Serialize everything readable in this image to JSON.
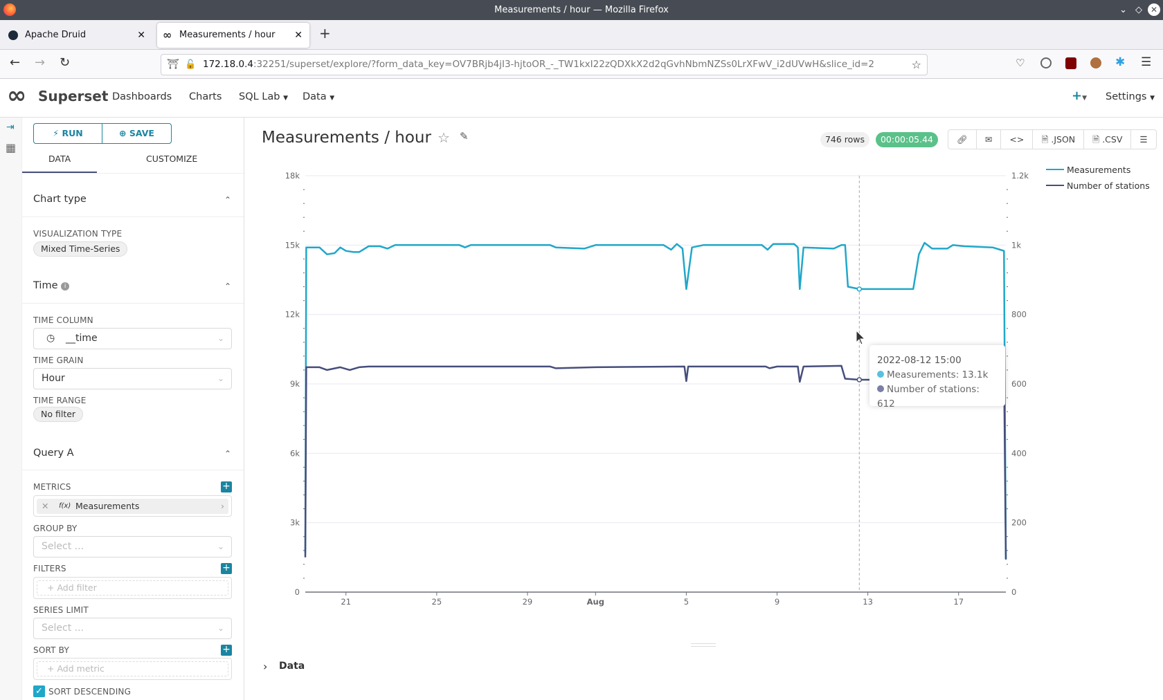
{
  "window": {
    "title": "Measurements / hour — Mozilla Firefox"
  },
  "tabs": [
    {
      "label": "Apache Druid"
    },
    {
      "label": "Measurements / hour",
      "active": true
    }
  ],
  "urlbar": {
    "host": "172.18.0.4",
    "rest": ":32251/superset/explore/?form_data_key=OV7BRjb4jI3-hjtoOR_-_TW1kxI22zQDXkX2d2qGvhNbmNZSs0LrXFwV_i2dUVwH&slice_id=2"
  },
  "app": {
    "brand": "Superset",
    "nav": [
      "Dashboards",
      "Charts",
      "SQL Lab",
      "Data"
    ],
    "settings": "Settings"
  },
  "panel": {
    "run": "RUN",
    "save": "SAVE",
    "tabs": [
      "DATA",
      "CUSTOMIZE"
    ],
    "chart_type": "Chart type",
    "viz_type_label": "VISUALIZATION TYPE",
    "viz_type": "Mixed Time-Series",
    "time": "Time",
    "time_column_label": "TIME COLUMN",
    "time_column": "__time",
    "time_grain_label": "TIME GRAIN",
    "time_grain": "Hour",
    "time_range_label": "TIME RANGE",
    "time_range": "No filter",
    "query": "Query A",
    "metrics_label": "METRICS",
    "metric": "Measurements",
    "metric_fx": "f(x)",
    "group_by_label": "GROUP BY",
    "select_ph": "Select ...",
    "filters_label": "FILTERS",
    "add_filter": "Add filter",
    "series_limit_label": "SERIES LIMIT",
    "sort_by_label": "SORT BY",
    "add_metric": "Add metric",
    "sort_desc": "SORT DESCENDING",
    "sort_desc_checked": true
  },
  "chart_header": {
    "title": "Measurements / hour",
    "rows": "746 rows",
    "timer": "00:00:05.44",
    "json": ".JSON",
    "csv": ".CSV"
  },
  "tooltip": {
    "time": "2022-08-12 15:00",
    "m": "Measurements: 13.1k",
    "s": "Number of stations: 612"
  },
  "data_section": "Data",
  "chart_data": {
    "type": "line",
    "xlim": [
      "2022-07-19 05:00",
      "2022-08-19 02:00"
    ],
    "x_ticks": [
      "21",
      "25",
      "29",
      "Aug",
      "5",
      "9",
      "13",
      "17"
    ],
    "x_tick_dates": [
      "2022-07-21",
      "2022-07-25",
      "2022-07-29",
      "2022-08-01",
      "2022-08-05",
      "2022-08-09",
      "2022-08-13",
      "2022-08-17"
    ],
    "y_left": {
      "lim": [
        0,
        18000
      ],
      "ticks": [
        "0",
        "3k",
        "6k",
        "9k",
        "12k",
        "15k",
        "18k"
      ]
    },
    "y_right": {
      "lim": [
        0,
        1200
      ],
      "ticks": [
        "0",
        "200",
        "400",
        "600",
        "800",
        "1k",
        "1.2k"
      ]
    },
    "grid": true,
    "legend": "top-right",
    "hover": "2022-08-12 15:00",
    "series": [
      {
        "name": "Measurements",
        "axis": "left",
        "color": "#20a7c9",
        "points": [
          [
            "2022-07-19 05:00",
            1700
          ],
          [
            "2022-07-19 06:00",
            14900
          ],
          [
            "2022-07-19 20:00",
            14900
          ],
          [
            "2022-07-20 04:00",
            14600
          ],
          [
            "2022-07-20 12:00",
            14650
          ],
          [
            "2022-07-20 18:00",
            14900
          ],
          [
            "2022-07-21 00:00",
            14750
          ],
          [
            "2022-07-21 08:00",
            14700
          ],
          [
            "2022-07-21 14:00",
            14700
          ],
          [
            "2022-07-22 00:00",
            14950
          ],
          [
            "2022-07-22 12:00",
            14950
          ],
          [
            "2022-07-22 20:00",
            14850
          ],
          [
            "2022-07-23 04:00",
            15000
          ],
          [
            "2022-07-26 00:00",
            15000
          ],
          [
            "2022-07-26 06:00",
            14900
          ],
          [
            "2022-07-26 12:00",
            15000
          ],
          [
            "2022-07-30 00:00",
            15000
          ],
          [
            "2022-07-30 06:00",
            14900
          ],
          [
            "2022-07-31 12:00",
            14850
          ],
          [
            "2022-08-01 00:00",
            15000
          ],
          [
            "2022-08-04 00:00",
            15000
          ],
          [
            "2022-08-04 08:00",
            14800
          ],
          [
            "2022-08-04 14:00",
            15050
          ],
          [
            "2022-08-04 20:00",
            14850
          ],
          [
            "2022-08-05 00:00",
            13100
          ],
          [
            "2022-08-05 06:00",
            14900
          ],
          [
            "2022-08-05 18:00",
            15000
          ],
          [
            "2022-08-08 08:00",
            15000
          ],
          [
            "2022-08-08 14:00",
            14800
          ],
          [
            "2022-08-08 20:00",
            15050
          ],
          [
            "2022-08-09 18:00",
            15050
          ],
          [
            "2022-08-09 22:00",
            14900
          ],
          [
            "2022-08-10 00:00",
            13100
          ],
          [
            "2022-08-10 04:00",
            14900
          ],
          [
            "2022-08-11 12:00",
            14850
          ],
          [
            "2022-08-11 20:00",
            15000
          ],
          [
            "2022-08-12 00:00",
            15000
          ],
          [
            "2022-08-12 03:00",
            13200
          ],
          [
            "2022-08-12 15:00",
            13100
          ],
          [
            "2022-08-15 00:00",
            13100
          ],
          [
            "2022-08-15 06:00",
            14600
          ],
          [
            "2022-08-15 12:00",
            15100
          ],
          [
            "2022-08-15 20:00",
            14850
          ],
          [
            "2022-08-16 12:00",
            14850
          ],
          [
            "2022-08-16 18:00",
            15000
          ],
          [
            "2022-08-17 06:00",
            14950
          ],
          [
            "2022-08-18 12:00",
            14900
          ],
          [
            "2022-08-18 20:00",
            14800
          ],
          [
            "2022-08-19 00:00",
            14750
          ],
          [
            "2022-08-19 02:00",
            1400
          ]
        ]
      },
      {
        "name": "Number of stations",
        "axis": "right",
        "color": "#454e7c",
        "points": [
          [
            "2022-07-19 05:00",
            100
          ],
          [
            "2022-07-19 06:00",
            648
          ],
          [
            "2022-07-19 20:00",
            648
          ],
          [
            "2022-07-20 04:00",
            640
          ],
          [
            "2022-07-20 18:00",
            648
          ],
          [
            "2022-07-21 04:00",
            640
          ],
          [
            "2022-07-21 14:00",
            648
          ],
          [
            "2022-07-22 00:00",
            650
          ],
          [
            "2022-07-30 00:00",
            650
          ],
          [
            "2022-07-30 06:00",
            645
          ],
          [
            "2022-08-01 00:00",
            648
          ],
          [
            "2022-08-04 22:00",
            650
          ],
          [
            "2022-08-05 00:00",
            608
          ],
          [
            "2022-08-05 02:00",
            650
          ],
          [
            "2022-08-08 12:00",
            650
          ],
          [
            "2022-08-08 16:00",
            645
          ],
          [
            "2022-08-09 00:00",
            650
          ],
          [
            "2022-08-09 22:00",
            650
          ],
          [
            "2022-08-10 00:00",
            606
          ],
          [
            "2022-08-10 04:00",
            650
          ],
          [
            "2022-08-11 20:00",
            652
          ],
          [
            "2022-08-12 00:00",
            615
          ],
          [
            "2022-08-12 15:00",
            612
          ],
          [
            "2022-08-15 00:00",
            612
          ],
          [
            "2022-08-15 06:00",
            650
          ],
          [
            "2022-08-19 00:00",
            650
          ],
          [
            "2022-08-19 02:00",
            95
          ]
        ]
      }
    ]
  },
  "colors": {
    "accent": "#1a85a0",
    "timer_bg": "#5ac189",
    "measurements": "#20a7c9",
    "stations": "#454e7c"
  }
}
